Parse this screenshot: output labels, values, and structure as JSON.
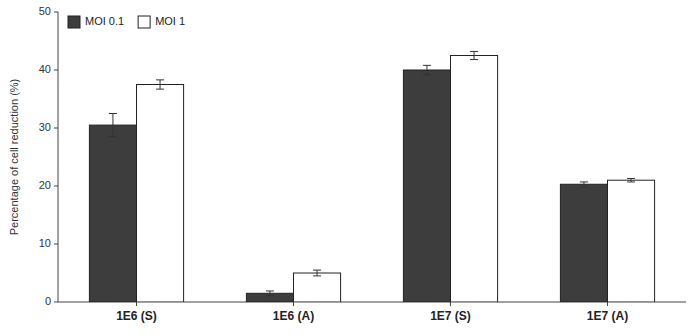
{
  "chart_data": {
    "type": "bar",
    "categories": [
      "1E6 (S)",
      "1E6 (A)",
      "1E7 (S)",
      "1E7 (A)"
    ],
    "series": [
      {
        "name": "MOI 0.1",
        "color": "#3d3d3d",
        "values": [
          30.5,
          1.5,
          40.0,
          20.3
        ],
        "errors": [
          2.0,
          0.4,
          0.8,
          0.4
        ]
      },
      {
        "name": "MOI 1",
        "color": "#ffffff",
        "values": [
          37.5,
          5.0,
          42.5,
          21.0
        ],
        "errors": [
          0.8,
          0.5,
          0.7,
          0.3
        ]
      }
    ],
    "ylabel": "Percentage of cell reduction (%)",
    "ylim": [
      0,
      50
    ],
    "yticks": [
      0,
      10,
      20,
      30,
      40,
      50
    ],
    "grid": false,
    "legend": "upper left"
  }
}
